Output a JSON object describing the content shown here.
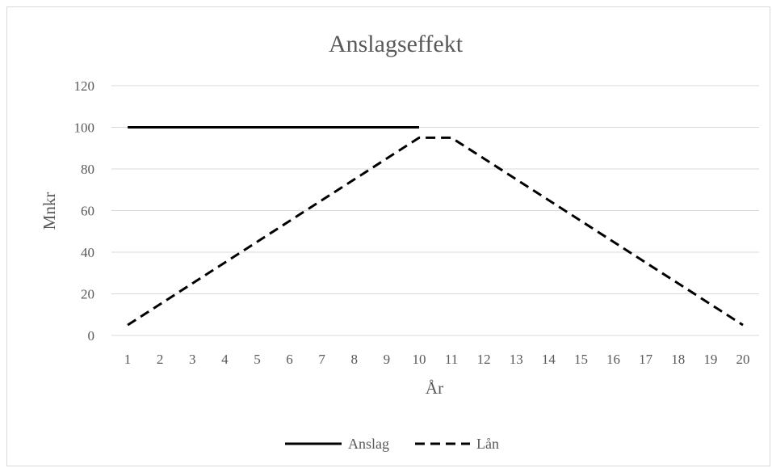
{
  "chart_data": {
    "type": "line",
    "title": "Anslagseffekt",
    "xlabel": "År",
    "ylabel": "Mnkr",
    "ylim": [
      0,
      120
    ],
    "yticks": [
      0,
      20,
      40,
      60,
      80,
      100,
      120
    ],
    "categories": [
      "1",
      "2",
      "3",
      "4",
      "5",
      "6",
      "7",
      "8",
      "9",
      "10",
      "11",
      "12",
      "13",
      "14",
      "15",
      "16",
      "17",
      "18",
      "19",
      "20"
    ],
    "grid": true,
    "legend_position": "bottom",
    "series": [
      {
        "name": "Anslag",
        "style": "solid",
        "color": "#000000",
        "values": [
          100,
          100,
          100,
          100,
          100,
          100,
          100,
          100,
          100,
          100,
          null,
          null,
          null,
          null,
          null,
          null,
          null,
          null,
          null,
          null
        ]
      },
      {
        "name": "Lån",
        "style": "dashed",
        "color": "#000000",
        "values": [
          5,
          15,
          25,
          35,
          45,
          55,
          65,
          75,
          85,
          95,
          95,
          85,
          75,
          65,
          55,
          45,
          35,
          25,
          15,
          5
        ]
      }
    ]
  }
}
